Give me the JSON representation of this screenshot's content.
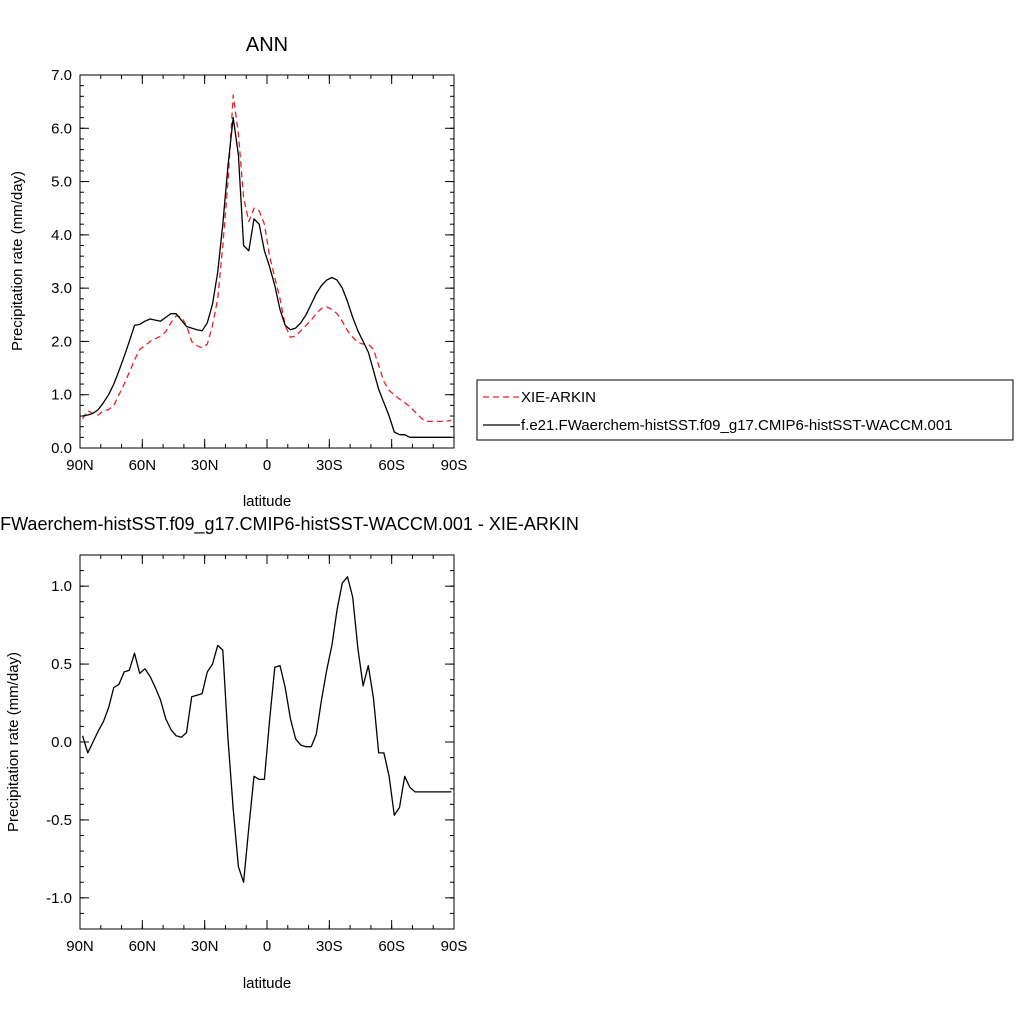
{
  "chart_data": [
    {
      "type": "line",
      "title": "ANN",
      "xlabel": "latitude",
      "ylabel": "Precipitation rate (mm/day)",
      "xlim": [
        -90,
        90
      ],
      "ylim": [
        0,
        7
      ],
      "x_ticks": [
        -90,
        -60,
        -30,
        0,
        30,
        60,
        90
      ],
      "x_tick_labels": [
        "90N",
        "60N",
        "30N",
        "0",
        "30S",
        "60S",
        "90S"
      ],
      "y_ticks": [
        0,
        1,
        2,
        3,
        4,
        5,
        6,
        7
      ],
      "y_tick_labels": [
        "0.0",
        "1.0",
        "2.0",
        "3.0",
        "4.0",
        "5.0",
        "6.0",
        "7.0"
      ],
      "legend_position": "right",
      "series": [
        {
          "name": "XIE-ARKIN",
          "color": "#e8202a",
          "dash": "dashed",
          "x": [
            -88.75,
            -86.25,
            -83.75,
            -81.25,
            -78.75,
            -76.25,
            -73.75,
            -71.25,
            -68.75,
            -66.25,
            -63.75,
            -61.25,
            -58.75,
            -56.25,
            -53.75,
            -51.25,
            -48.75,
            -46.25,
            -43.75,
            -41.25,
            -38.75,
            -36.25,
            -33.75,
            -31.25,
            -28.75,
            -26.25,
            -23.75,
            -21.25,
            -18.75,
            -16.25,
            -13.75,
            -11.25,
            -8.75,
            -6.25,
            -3.75,
            -1.25,
            1.25,
            3.75,
            6.25,
            8.75,
            11.25,
            13.75,
            16.25,
            18.75,
            21.25,
            23.75,
            26.25,
            28.75,
            31.25,
            33.75,
            36.25,
            38.75,
            41.25,
            43.75,
            46.25,
            48.75,
            51.25,
            53.75,
            56.25,
            58.75,
            61.25,
            63.75,
            66.25,
            68.75,
            71.25,
            73.75,
            76.25,
            78.75,
            81.25,
            83.75,
            86.25,
            88.75
          ],
          "y": [
            0.55,
            0.7,
            0.65,
            0.62,
            0.7,
            0.72,
            0.8,
            1.0,
            1.2,
            1.42,
            1.65,
            1.85,
            1.92,
            2.0,
            2.05,
            2.1,
            2.18,
            2.35,
            2.48,
            2.46,
            2.3,
            2.0,
            1.92,
            1.88,
            1.95,
            2.3,
            2.8,
            3.8,
            5.0,
            6.62,
            5.9,
            4.7,
            4.25,
            4.5,
            4.45,
            4.2,
            3.6,
            3.2,
            2.8,
            2.3,
            2.08,
            2.1,
            2.2,
            2.3,
            2.4,
            2.52,
            2.62,
            2.65,
            2.6,
            2.52,
            2.38,
            2.2,
            2.08,
            1.98,
            1.95,
            1.95,
            1.85,
            1.55,
            1.25,
            1.08,
            1.0,
            0.92,
            0.85,
            0.78,
            0.68,
            0.58,
            0.5,
            0.5,
            0.5,
            0.5,
            0.5,
            0.52
          ]
        },
        {
          "name": "f.e21.FWaerchem-histSST.f09_g17.CMIP6-histSST-WACCM.001",
          "color": "#000000",
          "dash": "solid",
          "x": [
            -88.75,
            -86.25,
            -83.75,
            -81.25,
            -78.75,
            -76.25,
            -73.75,
            -71.25,
            -68.75,
            -66.25,
            -63.75,
            -61.25,
            -58.75,
            -56.25,
            -53.75,
            -51.25,
            -48.75,
            -46.25,
            -43.75,
            -41.25,
            -38.75,
            -36.25,
            -33.75,
            -31.25,
            -28.75,
            -26.25,
            -23.75,
            -21.25,
            -18.75,
            -16.25,
            -13.75,
            -11.25,
            -8.75,
            -6.25,
            -3.75,
            -1.25,
            1.25,
            3.75,
            6.25,
            8.75,
            11.25,
            13.75,
            16.25,
            18.75,
            21.25,
            23.75,
            26.25,
            28.75,
            31.25,
            33.75,
            36.25,
            38.75,
            41.25,
            43.75,
            46.25,
            48.75,
            51.25,
            53.75,
            56.25,
            58.75,
            61.25,
            63.75,
            66.25,
            68.75,
            71.25,
            73.75,
            76.25,
            78.75,
            81.25,
            83.75,
            86.25,
            88.75
          ],
          "y": [
            0.6,
            0.62,
            0.65,
            0.72,
            0.85,
            1.0,
            1.2,
            1.45,
            1.72,
            2.0,
            2.3,
            2.32,
            2.38,
            2.42,
            2.4,
            2.38,
            2.45,
            2.52,
            2.52,
            2.4,
            2.28,
            2.25,
            2.22,
            2.2,
            2.35,
            2.7,
            3.3,
            4.2,
            5.3,
            6.2,
            5.5,
            3.8,
            3.7,
            4.3,
            4.2,
            3.7,
            3.4,
            3.05,
            2.6,
            2.3,
            2.22,
            2.25,
            2.35,
            2.5,
            2.7,
            2.9,
            3.05,
            3.15,
            3.2,
            3.15,
            3.0,
            2.75,
            2.45,
            2.2,
            2.0,
            1.8,
            1.45,
            1.1,
            0.85,
            0.6,
            0.3,
            0.25,
            0.25,
            0.2,
            0.2,
            0.2,
            0.2,
            0.2,
            0.2,
            0.2,
            0.2,
            0.2
          ]
        }
      ]
    },
    {
      "type": "line",
      "title": "f.e21.FWaerchem-histSST.f09_g17.CMIP6-histSST-WACCM.001 - XIE-ARKIN",
      "xlabel": "latitude",
      "ylabel": "Precipitation rate (mm/day)",
      "xlim": [
        -90,
        90
      ],
      "ylim": [
        -1.2,
        1.2
      ],
      "x_ticks": [
        -90,
        -60,
        -30,
        0,
        30,
        60,
        90
      ],
      "x_tick_labels": [
        "90N",
        "60N",
        "30N",
        "0",
        "30S",
        "60S",
        "90S"
      ],
      "y_ticks": [
        -1.0,
        -0.5,
        0.0,
        0.5,
        1.0
      ],
      "y_tick_labels": [
        "-1.0",
        "-0.5",
        "0.0",
        "0.5",
        "1.0"
      ],
      "series": [
        {
          "color": "#000000",
          "dash": "solid",
          "x": [
            -88.75,
            -86.25,
            -83.75,
            -81.25,
            -78.75,
            -76.25,
            -73.75,
            -71.25,
            -68.75,
            -66.25,
            -63.75,
            -61.25,
            -58.75,
            -56.25,
            -53.75,
            -51.25,
            -48.75,
            -46.25,
            -43.75,
            -41.25,
            -38.75,
            -36.25,
            -33.75,
            -31.25,
            -28.75,
            -26.25,
            -23.75,
            -21.25,
            -18.75,
            -16.25,
            -13.75,
            -11.25,
            -8.75,
            -6.25,
            -3.75,
            -1.25,
            1.25,
            3.75,
            6.25,
            8.75,
            11.25,
            13.75,
            16.25,
            18.75,
            21.25,
            23.75,
            26.25,
            28.75,
            31.25,
            33.75,
            36.25,
            38.75,
            41.25,
            43.75,
            46.25,
            48.75,
            51.25,
            53.75,
            56.25,
            58.75,
            61.25,
            63.75,
            66.25,
            68.75,
            71.25,
            73.75,
            76.25,
            78.75,
            81.25,
            83.75,
            86.25,
            88.75
          ],
          "y": [
            0.04,
            -0.07,
            0.0,
            0.07,
            0.13,
            0.22,
            0.35,
            0.37,
            0.45,
            0.46,
            0.57,
            0.44,
            0.47,
            0.42,
            0.35,
            0.27,
            0.15,
            0.08,
            0.04,
            0.03,
            0.06,
            0.29,
            0.3,
            0.31,
            0.45,
            0.5,
            0.62,
            0.59,
            0.02,
            -0.43,
            -0.8,
            -0.9,
            -0.55,
            -0.22,
            -0.24,
            -0.24,
            0.14,
            0.48,
            0.49,
            0.35,
            0.15,
            0.02,
            -0.02,
            -0.03,
            -0.03,
            0.05,
            0.27,
            0.46,
            0.62,
            0.85,
            1.02,
            1.06,
            0.93,
            0.6,
            0.36,
            0.49,
            0.28,
            -0.07,
            -0.07,
            -0.22,
            -0.47,
            -0.42,
            -0.22,
            -0.29,
            -0.32,
            -0.32,
            -0.32,
            -0.32,
            -0.32,
            -0.32,
            -0.32,
            -0.32
          ]
        }
      ]
    }
  ]
}
